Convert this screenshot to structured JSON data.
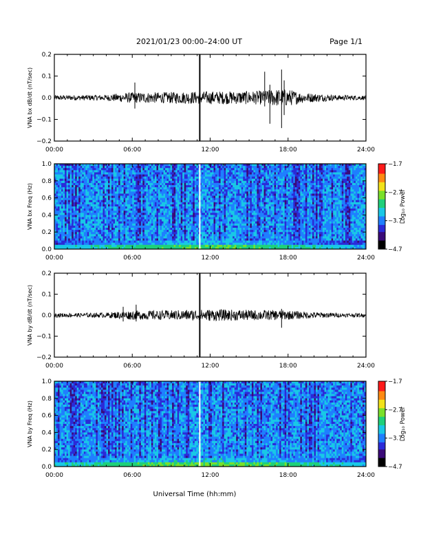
{
  "header": {
    "title": "2021/01/23  00:00–24:00 UT",
    "page": "Page 1/1"
  },
  "xaxis": {
    "label": "Universal Time (hh:mm)",
    "ticks": [
      "00:00",
      "06:00",
      "12:00",
      "18:00",
      "24:00"
    ],
    "range_hours": [
      0,
      24
    ]
  },
  "colormap": [
    "#000000",
    "#3a0a78",
    "#2b2bd8",
    "#1f7fff",
    "#19c8e6",
    "#1fd07a",
    "#7ae02a",
    "#f2e21a",
    "#ff8a12",
    "#ff1a1a"
  ],
  "chart_data": [
    {
      "type": "line",
      "id": "bx-waveform",
      "ylabel": "VNA bx dB/dt (nT/sec)",
      "ylim": [
        -0.2,
        0.2
      ],
      "yticks": [
        "0.2",
        "0.1",
        "0.0",
        "−0.1",
        "−0.2"
      ],
      "grid": false,
      "noise_envelope": {
        "hours": [
          0,
          2,
          4,
          5,
          6,
          8,
          10,
          12,
          14,
          16,
          17,
          18,
          19,
          20,
          22,
          24
        ],
        "amplitude": [
          0.012,
          0.012,
          0.014,
          0.02,
          0.025,
          0.025,
          0.028,
          0.03,
          0.03,
          0.032,
          0.04,
          0.04,
          0.025,
          0.02,
          0.012,
          0.01
        ]
      },
      "spikes": [
        {
          "hour": 11.2,
          "min": -0.2,
          "max": 0.2
        },
        {
          "hour": 6.2,
          "min": -0.05,
          "max": 0.07
        },
        {
          "hour": 16.2,
          "min": -0.04,
          "max": 0.12
        },
        {
          "hour": 16.6,
          "min": -0.12,
          "max": 0.06
        },
        {
          "hour": 17.5,
          "min": -0.14,
          "max": 0.13
        },
        {
          "hour": 17.7,
          "min": -0.08,
          "max": 0.08
        }
      ]
    },
    {
      "type": "heatmap",
      "id": "bx-spectrogram",
      "ylabel": "VNA bx Freq (Hz)",
      "ylim": [
        0.0,
        1.0
      ],
      "yticks": [
        "1.0",
        "0.8",
        "0.6",
        "0.4",
        "0.2",
        "0.0"
      ],
      "colorbar": {
        "label": "Log₁₀ Power",
        "ticks": [
          "−1.7",
          "−2.7",
          "−3.7",
          "−4.7"
        ],
        "range": [
          -4.7,
          -1.7
        ]
      },
      "gap_hour": 11.2,
      "low_band_level": [
        {
          "hour": 0,
          "level": -3.4
        },
        {
          "hour": 6,
          "level": -3.1
        },
        {
          "hour": 12,
          "level": -2.9
        },
        {
          "hour": 18,
          "level": -3.1
        },
        {
          "hour": 24,
          "level": -3.5
        }
      ]
    },
    {
      "type": "line",
      "id": "by-waveform",
      "ylabel": "VNA by dB/dt (nT/sec)",
      "ylim": [
        -0.2,
        0.2
      ],
      "yticks": [
        "0.2",
        "0.1",
        "0.0",
        "−0.1",
        "−0.2"
      ],
      "grid": false,
      "noise_envelope": {
        "hours": [
          0,
          2,
          4,
          5,
          6,
          8,
          10,
          12,
          14,
          16,
          17,
          18,
          19,
          20,
          22,
          24
        ],
        "amplitude": [
          0.01,
          0.01,
          0.012,
          0.018,
          0.022,
          0.022,
          0.025,
          0.028,
          0.026,
          0.024,
          0.024,
          0.022,
          0.018,
          0.015,
          0.01,
          0.009
        ]
      },
      "spikes": [
        {
          "hour": 11.2,
          "min": -0.2,
          "max": 0.2
        },
        {
          "hour": 5.3,
          "min": -0.03,
          "max": 0.04
        },
        {
          "hour": 6.3,
          "min": -0.03,
          "max": 0.05
        },
        {
          "hour": 17.5,
          "min": -0.06,
          "max": 0.03
        }
      ]
    },
    {
      "type": "heatmap",
      "id": "by-spectrogram",
      "ylabel": "VNA by Freq (Hz)",
      "ylim": [
        0.0,
        1.0
      ],
      "yticks": [
        "1.0",
        "0.8",
        "0.6",
        "0.4",
        "0.2",
        "0.0"
      ],
      "colorbar": {
        "label": "Log₁₀ Power",
        "ticks": [
          "−1.7",
          "−2.7",
          "−3.7",
          "−4.7"
        ],
        "range": [
          -4.7,
          -1.7
        ]
      },
      "gap_hour": 11.2,
      "low_band_level": [
        {
          "hour": 0,
          "level": -3.3
        },
        {
          "hour": 6,
          "level": -3.0
        },
        {
          "hour": 12,
          "level": -2.8
        },
        {
          "hour": 18,
          "level": -3.0
        },
        {
          "hour": 24,
          "level": -3.4
        }
      ]
    }
  ]
}
